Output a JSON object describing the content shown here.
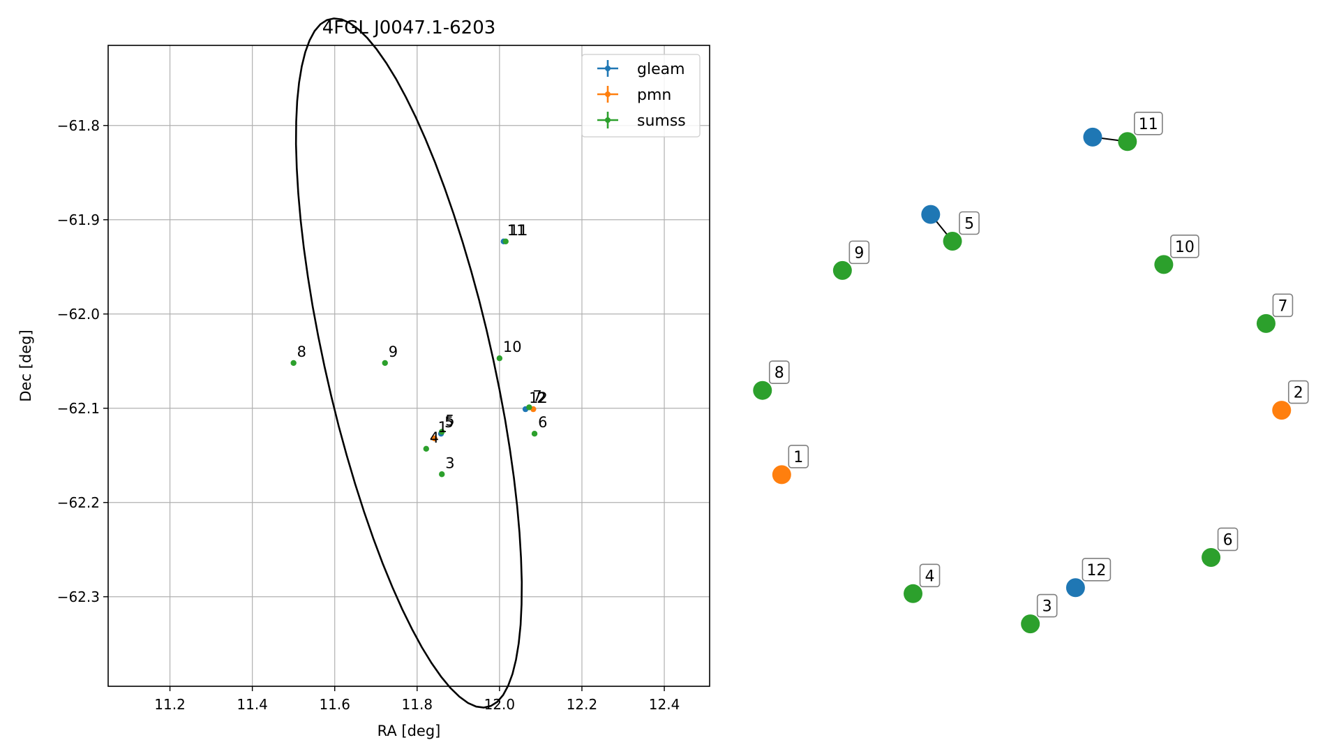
{
  "chart_data": [
    {
      "type": "scatter",
      "title": "4FGL J0047.1-6203",
      "xlabel": "RA [deg]",
      "ylabel": "Dec [deg]",
      "xlim": [
        11.05,
        12.51
      ],
      "ylim": [
        -62.395,
        -61.715
      ],
      "xticks": [
        11.2,
        11.4,
        11.6,
        11.8,
        12.0,
        12.2,
        12.4
      ],
      "xtick_labels": [
        "11.2",
        "11.4",
        "11.6",
        "11.8",
        "12.0",
        "12.2",
        "12.4"
      ],
      "yticks": [
        -61.8,
        -61.9,
        -62.0,
        -62.1,
        -62.2,
        -62.3
      ],
      "ytick_labels": [
        "−61.8",
        "−61.9",
        "−62.0",
        "−62.1",
        "−62.2",
        "−62.3"
      ],
      "grid": true,
      "legend_position": "top-right",
      "colors": {
        "gleam": "#1f77b4",
        "pmn": "#ff7f0e",
        "sumss": "#2ca02c"
      },
      "series": [
        {
          "name": "gleam",
          "points": [
            {
              "label": "5",
              "ra": 11.858,
              "dec": -62.127
            },
            {
              "label": "11",
              "ra": 12.01,
              "dec": -61.923
            },
            {
              "label": "12",
              "ra": 12.063,
              "dec": -62.101
            }
          ]
        },
        {
          "name": "pmn",
          "points": [
            {
              "label": "1",
              "ra": 11.842,
              "dec": -62.132
            },
            {
              "label": "2",
              "ra": 12.082,
              "dec": -62.101
            }
          ]
        },
        {
          "name": "sumss",
          "points": [
            {
              "label": "3",
              "ra": 11.86,
              "dec": -62.17
            },
            {
              "label": "4",
              "ra": 11.822,
              "dec": -62.143
            },
            {
              "label": "5",
              "ra": 11.86,
              "dec": -62.125
            },
            {
              "label": "6",
              "ra": 12.085,
              "dec": -62.127
            },
            {
              "label": "7",
              "ra": 12.072,
              "dec": -62.099
            },
            {
              "label": "8",
              "ra": 11.5,
              "dec": -62.052
            },
            {
              "label": "9",
              "ra": 11.722,
              "dec": -62.052
            },
            {
              "label": "10",
              "ra": 12.0,
              "dec": -62.047
            },
            {
              "label": "11",
              "ra": 12.015,
              "dec": -61.923
            }
          ]
        }
      ],
      "ellipse": {
        "center_ra": 11.78,
        "center_dec": -62.052,
        "a_deg": 0.42,
        "b_deg": 0.18,
        "angle_deg": -57
      }
    },
    {
      "type": "network",
      "nodes": [
        {
          "label": "1",
          "catalog": "pmn",
          "x": 0.034,
          "y": 0.31
        },
        {
          "label": "2",
          "catalog": "pmn",
          "x": 0.997,
          "y": 0.44
        },
        {
          "label": "3",
          "catalog": "sumss",
          "x": 0.513,
          "y": 0.009
        },
        {
          "label": "4",
          "catalog": "sumss",
          "x": 0.287,
          "y": 0.07
        },
        {
          "label": "5",
          "catalog": "gleam",
          "x": 0.321,
          "y": 0.835
        },
        {
          "label": "5",
          "catalog": "sumss",
          "x": 0.363,
          "y": 0.781,
          "annotated": true
        },
        {
          "label": "6",
          "catalog": "sumss",
          "x": 0.861,
          "y": 0.143
        },
        {
          "label": "7",
          "catalog": "sumss",
          "x": 0.967,
          "y": 0.615
        },
        {
          "label": "8",
          "catalog": "sumss",
          "x": -0.003,
          "y": 0.48
        },
        {
          "label": "9",
          "catalog": "sumss",
          "x": 0.151,
          "y": 0.722
        },
        {
          "label": "10",
          "catalog": "sumss",
          "x": 0.77,
          "y": 0.734
        },
        {
          "label": "11",
          "catalog": "gleam",
          "x": 0.633,
          "y": 0.991
        },
        {
          "label": "11",
          "catalog": "sumss",
          "x": 0.7,
          "y": 0.982,
          "annotated": true
        },
        {
          "label": "12",
          "catalog": "gleam",
          "x": 0.6,
          "y": 0.082,
          "annotated": true
        }
      ],
      "edges": [
        {
          "from": 4,
          "to": 5
        },
        {
          "from": 11,
          "to": 12
        }
      ]
    }
  ]
}
